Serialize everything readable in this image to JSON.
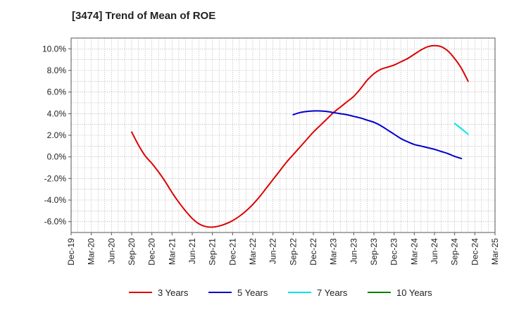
{
  "chart_data": {
    "type": "line",
    "title": "[3474]  Trend of Mean of ROE",
    "xlabel": "",
    "ylabel": "",
    "x_ticks": [
      "Dec-19",
      "Mar-20",
      "Jun-20",
      "Sep-20",
      "Dec-20",
      "Mar-21",
      "Jun-21",
      "Sep-21",
      "Dec-21",
      "Mar-22",
      "Jun-22",
      "Sep-22",
      "Dec-22",
      "Mar-23",
      "Jun-23",
      "Sep-23",
      "Dec-23",
      "Mar-24",
      "Jun-24",
      "Sep-24",
      "Dec-24",
      "Mar-25"
    ],
    "y_ticks": [
      "10.0%",
      "8.0%",
      "6.0%",
      "4.0%",
      "2.0%",
      "0.0%",
      "-2.0%",
      "-4.0%",
      "-6.0%"
    ],
    "y_tick_values": [
      10,
      8,
      6,
      4,
      2,
      0,
      -2,
      -4,
      -6
    ],
    "ylim": [
      -7,
      11
    ],
    "grid": true,
    "legend_position": "bottom",
    "series": [
      {
        "name": "3 Years",
        "color": "#dd0000",
        "points": [
          [
            "Sep-20",
            2.3
          ],
          [
            "Oct-20",
            1.1
          ],
          [
            "Nov-20",
            0.1
          ],
          [
            "Dec-20",
            -0.6
          ],
          [
            "Jan-21",
            -1.4
          ],
          [
            "Feb-21",
            -2.3
          ],
          [
            "Mar-21",
            -3.3
          ],
          [
            "Apr-21",
            -4.2
          ],
          [
            "May-21",
            -5.0
          ],
          [
            "Jun-21",
            -5.7
          ],
          [
            "Jul-21",
            -6.2
          ],
          [
            "Aug-21",
            -6.45
          ],
          [
            "Sep-21",
            -6.5
          ],
          [
            "Oct-21",
            -6.4
          ],
          [
            "Nov-21",
            -6.2
          ],
          [
            "Dec-21",
            -5.9
          ],
          [
            "Jan-22",
            -5.5
          ],
          [
            "Feb-22",
            -5.0
          ],
          [
            "Mar-22",
            -4.4
          ],
          [
            "Apr-22",
            -3.7
          ],
          [
            "May-22",
            -2.9
          ],
          [
            "Jun-22",
            -2.1
          ],
          [
            "Jul-22",
            -1.3
          ],
          [
            "Aug-22",
            -0.5
          ],
          [
            "Sep-22",
            0.2
          ],
          [
            "Oct-22",
            0.9
          ],
          [
            "Nov-22",
            1.6
          ],
          [
            "Dec-22",
            2.3
          ],
          [
            "Jan-23",
            2.9
          ],
          [
            "Feb-23",
            3.5
          ],
          [
            "Mar-23",
            4.1
          ],
          [
            "Apr-23",
            4.6
          ],
          [
            "May-23",
            5.1
          ],
          [
            "Jun-23",
            5.6
          ],
          [
            "Jul-23",
            6.3
          ],
          [
            "Aug-23",
            7.1
          ],
          [
            "Sep-23",
            7.7
          ],
          [
            "Oct-23",
            8.1
          ],
          [
            "Nov-23",
            8.3
          ],
          [
            "Dec-23",
            8.5
          ],
          [
            "Jan-24",
            8.8
          ],
          [
            "Feb-24",
            9.1
          ],
          [
            "Mar-24",
            9.5
          ],
          [
            "Apr-24",
            9.9
          ],
          [
            "May-24",
            10.2
          ],
          [
            "Jun-24",
            10.3
          ],
          [
            "Jul-24",
            10.2
          ],
          [
            "Aug-24",
            9.8
          ],
          [
            "Sep-24",
            9.1
          ],
          [
            "Oct-24",
            8.2
          ],
          [
            "Nov-24",
            7.0
          ]
        ]
      },
      {
        "name": "5 Years",
        "color": "#0000cc",
        "points": [
          [
            "Sep-22",
            3.9
          ],
          [
            "Oct-22",
            4.1
          ],
          [
            "Nov-22",
            4.2
          ],
          [
            "Dec-22",
            4.25
          ],
          [
            "Jan-23",
            4.25
          ],
          [
            "Feb-23",
            4.2
          ],
          [
            "Mar-23",
            4.1
          ],
          [
            "Apr-23",
            4.0
          ],
          [
            "May-23",
            3.9
          ],
          [
            "Jun-23",
            3.75
          ],
          [
            "Jul-23",
            3.6
          ],
          [
            "Aug-23",
            3.4
          ],
          [
            "Sep-23",
            3.2
          ],
          [
            "Oct-23",
            2.9
          ],
          [
            "Nov-23",
            2.5
          ],
          [
            "Dec-23",
            2.1
          ],
          [
            "Jan-24",
            1.7
          ],
          [
            "Feb-24",
            1.4
          ],
          [
            "Mar-24",
            1.15
          ],
          [
            "Apr-24",
            1.0
          ],
          [
            "May-24",
            0.85
          ],
          [
            "Jun-24",
            0.7
          ],
          [
            "Jul-24",
            0.5
          ],
          [
            "Aug-24",
            0.3
          ],
          [
            "Sep-24",
            0.05
          ],
          [
            "Oct-24",
            -0.15
          ]
        ]
      },
      {
        "name": "7 Years",
        "color": "#00e5e5",
        "points": [
          [
            "Sep-24",
            3.1
          ],
          [
            "Oct-24",
            2.6
          ],
          [
            "Nov-24",
            2.1
          ]
        ]
      },
      {
        "name": "10 Years",
        "color": "#008000",
        "points": []
      }
    ]
  }
}
